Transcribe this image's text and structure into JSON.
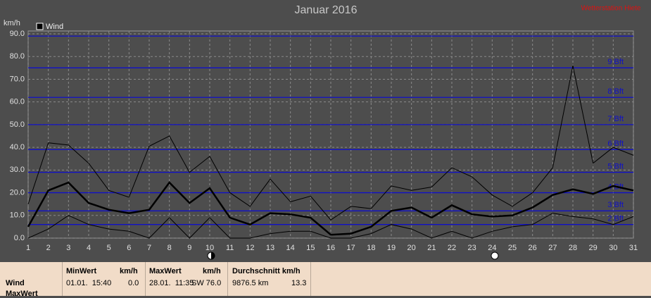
{
  "chart_data": {
    "type": "line",
    "title": "Januar 2016",
    "station": "Wetterstation Hiete",
    "y_axis_label": "km/h",
    "categories": [
      "1",
      "2",
      "3",
      "4",
      "5",
      "6",
      "7",
      "8",
      "9",
      "10",
      "11",
      "12",
      "13",
      "14",
      "15",
      "16",
      "17",
      "18",
      "19",
      "20",
      "21",
      "22",
      "23",
      "24",
      "25",
      "26",
      "27",
      "28",
      "29",
      "30",
      "31"
    ],
    "series": [
      {
        "name": "Wind",
        "color": "#000000",
        "values": [
          5,
          21,
          24.5,
          15.5,
          12.5,
          11,
          12.5,
          24.5,
          15.5,
          22,
          9,
          6,
          11,
          10.5,
          9,
          1.5,
          2,
          5,
          12,
          13.5,
          9,
          14.5,
          10.5,
          9.5,
          10,
          13.5,
          19,
          21.5,
          19.5,
          23,
          21
        ],
        "max_values": [
          15,
          42,
          41,
          33,
          21,
          18,
          40.5,
          45,
          29,
          36,
          20,
          14,
          26,
          16,
          18.5,
          8,
          14,
          13,
          23,
          21,
          22.5,
          31,
          27,
          19,
          14,
          20,
          31,
          76,
          33,
          40,
          36.5
        ],
        "min_values": [
          0,
          4,
          10,
          6,
          4,
          3,
          0,
          9,
          0,
          9,
          0,
          0,
          2,
          3,
          3,
          0,
          0,
          2,
          6,
          4,
          0,
          3,
          0,
          3,
          5,
          6,
          11,
          9.5,
          8.5,
          6,
          9.5
        ]
      }
    ],
    "ylim": [
      0,
      90
    ],
    "yticks": [
      {
        "value": 0,
        "label": "0.0"
      },
      {
        "value": 10,
        "label": "10.0"
      },
      {
        "value": 20,
        "label": "20.0"
      },
      {
        "value": 30,
        "label": "30.0"
      },
      {
        "value": 40,
        "label": "40.0"
      },
      {
        "value": 50,
        "label": "50.0"
      },
      {
        "value": 60,
        "label": "60.0"
      },
      {
        "value": 70,
        "label": "70.0"
      },
      {
        "value": 80,
        "label": "80.0"
      },
      {
        "value": 90,
        "label": "90.0"
      }
    ],
    "reference_lines": [
      {
        "value": 6,
        "label": "2 Bft"
      },
      {
        "value": 12,
        "label": "3 Bft"
      },
      {
        "value": 20,
        "label": "4 Bft"
      },
      {
        "value": 29,
        "label": "5 Bft"
      },
      {
        "value": 39,
        "label": "6 Bft"
      },
      {
        "value": 50,
        "label": "7 Bft"
      },
      {
        "value": 62,
        "label": "8 Bft"
      },
      {
        "value": 75,
        "label": "9 Bft"
      },
      {
        "value": 89
      }
    ],
    "reference_color": "#1010c8",
    "grid": true
  },
  "stats_table": {
    "headers": [
      "MinWert",
      "km/h",
      "MaxWert",
      "km/h",
      "Durchschnitt km/h"
    ],
    "rows": [
      [
        "Wind",
        "01.01.  15:40",
        "0.0",
        "28.01.  11:35",
        "SW 76.0",
        "9876.5 km",
        "13.3"
      ],
      [
        "MaxWert"
      ]
    ]
  }
}
